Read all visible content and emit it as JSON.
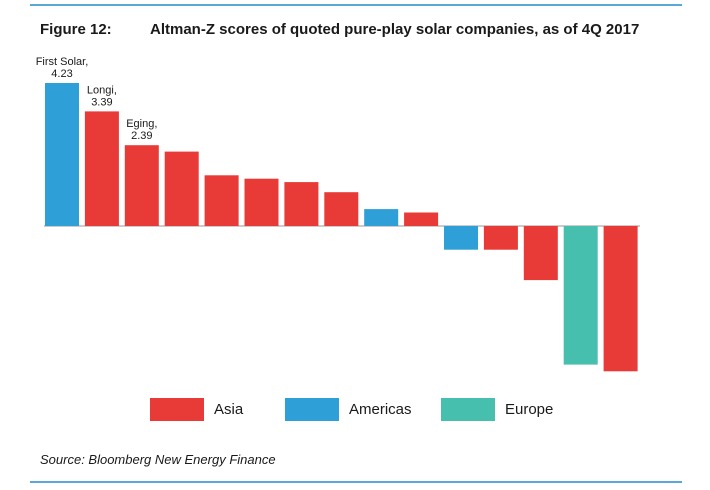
{
  "figure_label": "Figure 12:",
  "title": "Altman-Z scores of quoted pure-play solar companies, as of 4Q 2017",
  "source": "Source: Bloomberg New Energy Finance",
  "colors": {
    "Asia": "#e83a36",
    "Americas": "#2f9fd8",
    "Europe": "#47bfae"
  },
  "legend": [
    {
      "label": "Asia",
      "color": "#e83a36"
    },
    {
      "label": "Americas",
      "color": "#2f9fd8"
    },
    {
      "label": "Europe",
      "color": "#47bfae"
    }
  ],
  "chart_data": {
    "type": "bar",
    "title": "Altman-Z scores of quoted pure-play solar companies, as of 4Q 2017",
    "xlabel": "",
    "ylabel": "",
    "ylim": [
      -4.5,
      4.6
    ],
    "grid": false,
    "legend_position": "bottom",
    "categories": [
      "First Solar",
      "Longi",
      "Eging",
      "",
      "",
      "",
      "",
      "",
      "",
      "",
      "",
      "",
      "",
      "",
      ""
    ],
    "values": [
      4.23,
      3.39,
      2.39,
      2.2,
      1.5,
      1.4,
      1.3,
      1.0,
      0.5,
      0.4,
      -0.7,
      -0.7,
      -1.6,
      -4.1,
      -4.3
    ],
    "regions": [
      "Americas",
      "Asia",
      "Asia",
      "Asia",
      "Asia",
      "Asia",
      "Asia",
      "Asia",
      "Americas",
      "Asia",
      "Americas",
      "Asia",
      "Asia",
      "Europe",
      "Asia"
    ],
    "data_labels": [
      "First Solar,\n4.23",
      "Longi,\n3.39",
      "Eging,\n2.39",
      "",
      "",
      "",
      "",
      "",
      "",
      "",
      "",
      "",
      "",
      "",
      ""
    ]
  }
}
